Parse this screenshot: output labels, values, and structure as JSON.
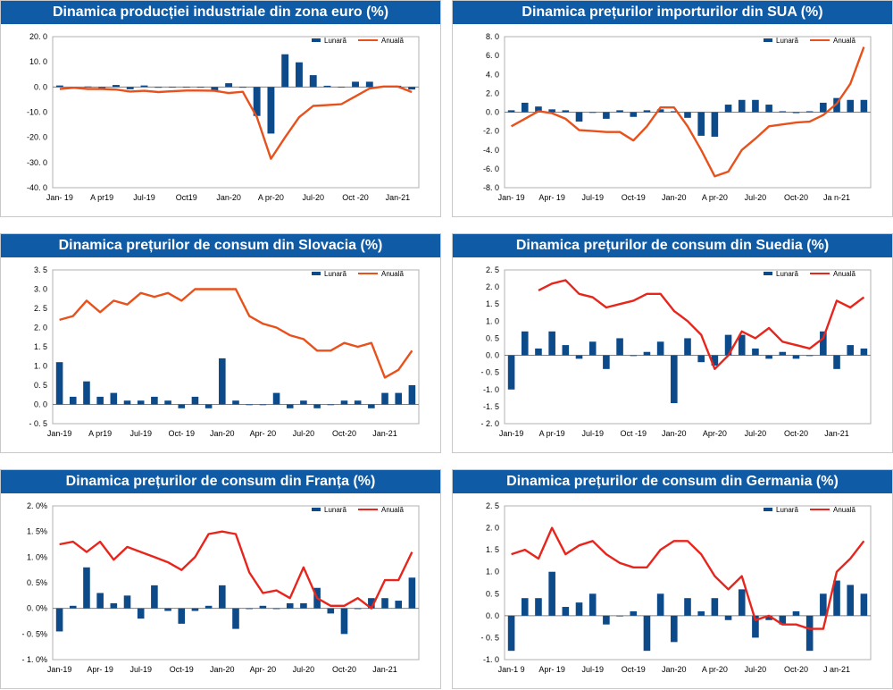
{
  "chart_data": [
    {
      "type": "bar",
      "title": "Dinamica producției industriale din zona euro (%)",
      "legend": [
        "Lunară",
        "Anuală"
      ],
      "x_tick_labels": [
        "Jan- 19",
        "A pr19",
        "Jul-19",
        "Oct19",
        "Jan-20",
        "A pr-20",
        "Jul-20",
        "Oct -20",
        "Jan-21"
      ],
      "y_tick_labels": [
        "20. 0",
        "10. 0",
        "0. 0",
        "-10. 0",
        "-20. 0",
        "-30. 0",
        "-40. 0"
      ],
      "ylim": [
        -40,
        20
      ],
      "yticks": [
        20,
        10,
        0,
        -10,
        -20,
        -30,
        -40
      ],
      "categories": [
        "Jan-19",
        "Feb-19",
        "Mar-19",
        "Apr-19",
        "May-19",
        "Jun-19",
        "Jul-19",
        "Aug-19",
        "Sep-19",
        "Oct-19",
        "Nov-19",
        "Dec-19",
        "Jan-20",
        "Feb-20",
        "Mar-20",
        "Apr-20",
        "May-20",
        "Jun-20",
        "Jul-20",
        "Aug-20",
        "Sep-20",
        "Oct-20",
        "Nov-20",
        "Dec-20",
        "Jan-21",
        "Feb-21"
      ],
      "series": [
        {
          "name": "Lunară",
          "kind": "bar",
          "color": "#0d4a8a",
          "values": [
            0.6,
            -0.3,
            0.2,
            -0.4,
            0.8,
            -0.9,
            0.6,
            -0.3,
            0.1,
            0.1,
            -0.1,
            -1.6,
            1.5,
            -0.2,
            -11.5,
            -18.5,
            13.0,
            9.8,
            4.7,
            0.5,
            0.1,
            2.1,
            2.1,
            0.1,
            0.5,
            -1.0
          ]
        },
        {
          "name": "Anuală",
          "kind": "line",
          "color": "#e8511c",
          "values": [
            -0.8,
            -0.3,
            -0.8,
            -0.8,
            -1.0,
            -1.8,
            -1.5,
            -2.0,
            -1.7,
            -1.4,
            -1.4,
            -1.5,
            -2.4,
            -1.9,
            -12.0,
            -28.5,
            -20.0,
            -12.0,
            -7.5,
            -7.2,
            -6.8,
            -3.7,
            -0.6,
            0.2,
            0.2,
            -2.0
          ]
        }
      ]
    },
    {
      "type": "bar",
      "title": "Dinamica prețurilor importurilor din SUA (%)",
      "legend": [
        "Lunară",
        "Anuală"
      ],
      "x_tick_labels": [
        "Jan- 19",
        "Apr- 19",
        "Jul-19",
        "Oct-19",
        "Jan-20",
        "A pr-20",
        "Jul-20",
        "Oct-20",
        "Ja n-21"
      ],
      "y_tick_labels": [
        "8. 0",
        "6. 0",
        "4. 0",
        "2. 0",
        "0. 0",
        "-2. 0",
        "-4. 0",
        "-6. 0",
        "-8. 0"
      ],
      "ylim": [
        -8,
        8
      ],
      "yticks": [
        8,
        6,
        4,
        2,
        0,
        -2,
        -4,
        -6,
        -8
      ],
      "categories": [
        "Jan-19",
        "Feb-19",
        "Mar-19",
        "Apr-19",
        "May-19",
        "Jun-19",
        "Jul-19",
        "Aug-19",
        "Sep-19",
        "Oct-19",
        "Nov-19",
        "Dec-19",
        "Jan-20",
        "Feb-20",
        "Mar-20",
        "Apr-20",
        "May-20",
        "Jun-20",
        "Jul-20",
        "Aug-20",
        "Sep-20",
        "Oct-20",
        "Nov-20",
        "Dec-20",
        "Jan-21",
        "Feb-21",
        "Mar-21"
      ],
      "series": [
        {
          "name": "Lunară",
          "kind": "bar",
          "color": "#0d4a8a",
          "values": [
            0.2,
            1.0,
            0.6,
            0.3,
            0.2,
            -1.0,
            0.0,
            -0.7,
            0.2,
            -0.5,
            0.2,
            0.3,
            0.1,
            -0.6,
            -2.5,
            -2.6,
            0.8,
            1.3,
            1.3,
            0.8,
            0.1,
            -0.1,
            0.1,
            1.0,
            1.5,
            1.3,
            1.3
          ]
        },
        {
          "name": "Anuală",
          "kind": "line",
          "color": "#e8511c",
          "values": [
            -1.5,
            -0.7,
            0.1,
            -0.1,
            -0.7,
            -1.9,
            -2.0,
            -2.1,
            -2.1,
            -3.0,
            -1.5,
            0.5,
            0.5,
            -1.5,
            -4.0,
            -6.8,
            -6.3,
            -4.0,
            -2.8,
            -1.5,
            -1.3,
            -1.1,
            -1.0,
            -0.3,
            0.9,
            3.0,
            6.9
          ]
        }
      ]
    },
    {
      "type": "bar",
      "title": "Dinamica prețurilor de consum din Slovacia (%)",
      "legend": [
        "Lunară",
        "Anuală"
      ],
      "x_tick_labels": [
        "Jan-19",
        "A pr19",
        "Jul-19",
        "Oct- 19",
        "Jan-20",
        "Apr- 20",
        "Jul-20",
        "Oct-20",
        "Jan-21"
      ],
      "y_tick_labels": [
        "3. 5",
        "3. 0",
        "2. 5",
        "2. 0",
        "1. 5",
        "1. 0",
        "0. 5",
        "0. 0",
        "- 0. 5"
      ],
      "ylim": [
        -0.5,
        3.5
      ],
      "yticks": [
        3.5,
        3.0,
        2.5,
        2.0,
        1.5,
        1.0,
        0.5,
        0.0,
        -0.5
      ],
      "categories": [
        "Jan-19",
        "Feb-19",
        "Mar-19",
        "Apr-19",
        "May-19",
        "Jun-19",
        "Jul-19",
        "Aug-19",
        "Sep-19",
        "Oct-19",
        "Nov-19",
        "Dec-19",
        "Jan-20",
        "Feb-20",
        "Mar-20",
        "Apr-20",
        "May-20",
        "Jun-20",
        "Jul-20",
        "Aug-20",
        "Sep-20",
        "Oct-20",
        "Nov-20",
        "Dec-20",
        "Jan-21",
        "Feb-21",
        "Mar-21"
      ],
      "series": [
        {
          "name": "Lunară",
          "kind": "bar",
          "color": "#0d4a8a",
          "values": [
            1.1,
            0.2,
            0.6,
            0.2,
            0.3,
            0.1,
            0.1,
            0.2,
            0.1,
            -0.1,
            0.2,
            -0.1,
            1.2,
            0.1,
            0.0,
            0.0,
            0.3,
            -0.1,
            0.1,
            -0.1,
            0.0,
            0.1,
            0.1,
            -0.1,
            0.3,
            0.3,
            0.5
          ]
        },
        {
          "name": "Anuală",
          "kind": "line",
          "color": "#e8511c",
          "values": [
            2.2,
            2.3,
            2.7,
            2.4,
            2.7,
            2.6,
            2.9,
            2.8,
            2.9,
            2.7,
            3.0,
            3.0,
            3.0,
            3.0,
            2.3,
            2.1,
            2.0,
            1.8,
            1.7,
            1.4,
            1.4,
            1.6,
            1.5,
            1.6,
            0.7,
            0.9,
            1.4
          ]
        }
      ]
    },
    {
      "type": "bar",
      "title": "Dinamica prețurilor de consum din Suedia (%)",
      "legend": [
        "Lunară",
        "Anuală"
      ],
      "x_tick_labels": [
        "Jan-19",
        "A pr-19",
        "Jul-19",
        "Oct -19",
        "Jan-20",
        "Apr-20",
        "Jul-20",
        "Oct-20",
        "Jan-21"
      ],
      "y_tick_labels": [
        "2. 5",
        "2. 0",
        "1. 5",
        "1. 0",
        "0. 5",
        "0. 0",
        "- 0. 5",
        "-1. 0",
        "-1. 5",
        "- 2. 0"
      ],
      "ylim": [
        -2.0,
        2.5
      ],
      "yticks": [
        2.5,
        2.0,
        1.5,
        1.0,
        0.5,
        0.0,
        -0.5,
        -1.0,
        -1.5,
        -2.0
      ],
      "categories": [
        "Jan-19",
        "Feb-19",
        "Mar-19",
        "Apr-19",
        "May-19",
        "Jun-19",
        "Jul-19",
        "Aug-19",
        "Sep-19",
        "Oct-19",
        "Nov-19",
        "Dec-19",
        "Jan-20",
        "Feb-20",
        "Mar-20",
        "Apr-20",
        "May-20",
        "Jun-20",
        "Jul-20",
        "Aug-20",
        "Sep-20",
        "Oct-20",
        "Nov-20",
        "Dec-20",
        "Jan-21",
        "Feb-21",
        "Mar-21"
      ],
      "series": [
        {
          "name": "Lunară",
          "kind": "bar",
          "color": "#0d4a8a",
          "values": [
            -1.0,
            0.7,
            0.2,
            0.7,
            0.3,
            -0.1,
            0.4,
            -0.4,
            0.5,
            0.0,
            0.1,
            0.4,
            -1.4,
            0.5,
            -0.2,
            -0.3,
            0.6,
            0.6,
            0.2,
            -0.1,
            0.1,
            -0.1,
            0.0,
            0.7,
            -0.4,
            0.3,
            0.2
          ]
        },
        {
          "name": "Anuală",
          "kind": "line",
          "color": "#e8251c",
          "values": [
            null,
            null,
            1.9,
            2.1,
            2.2,
            1.8,
            1.7,
            1.4,
            1.5,
            1.6,
            1.8,
            1.8,
            1.3,
            1.0,
            0.6,
            -0.4,
            0.0,
            0.7,
            0.5,
            0.8,
            0.4,
            0.3,
            0.2,
            0.5,
            1.6,
            1.4,
            1.7
          ]
        }
      ]
    },
    {
      "type": "bar",
      "title": "Dinamica prețurilor de consum din Franța (%)",
      "legend": [
        "Lunară",
        "Anuală"
      ],
      "x_tick_labels": [
        "Jan-19",
        "Apr- 19",
        "Jul-19",
        "Oct-19",
        "Jan-20",
        "Apr- 20",
        "Jul-20",
        "Oct-20",
        "Jan-21"
      ],
      "y_tick_labels": [
        "2. 0%",
        "1. 5%",
        "1. 0%",
        "0. 5%",
        "0. 0%",
        "- 0. 5%",
        "- 1. 0%"
      ],
      "ylim": [
        -1.0,
        2.0
      ],
      "yticks": [
        2.0,
        1.5,
        1.0,
        0.5,
        0.0,
        -0.5,
        -1.0
      ],
      "categories": [
        "Jan-19",
        "Feb-19",
        "Mar-19",
        "Apr-19",
        "May-19",
        "Jun-19",
        "Jul-19",
        "Aug-19",
        "Sep-19",
        "Oct-19",
        "Nov-19",
        "Dec-19",
        "Jan-20",
        "Feb-20",
        "Mar-20",
        "Apr-20",
        "May-20",
        "Jun-20",
        "Jul-20",
        "Aug-20",
        "Sep-20",
        "Oct-20",
        "Nov-20",
        "Dec-20",
        "Jan-21",
        "Feb-21",
        "Mar-21"
      ],
      "series": [
        {
          "name": "Lunară",
          "kind": "bar",
          "color": "#0d4a8a",
          "values": [
            -0.45,
            0.05,
            0.8,
            0.3,
            0.1,
            0.25,
            -0.2,
            0.45,
            -0.05,
            -0.3,
            -0.05,
            0.05,
            0.45,
            -0.4,
            0.0,
            0.05,
            0.0,
            0.1,
            0.1,
            0.4,
            -0.1,
            -0.5,
            0.0,
            0.2,
            0.2,
            0.15,
            0.6
          ]
        },
        {
          "name": "Anuală",
          "kind": "line",
          "color": "#e8251c",
          "values": [
            1.25,
            1.3,
            1.1,
            1.3,
            0.95,
            1.2,
            1.1,
            1.0,
            0.9,
            0.75,
            1.0,
            1.45,
            1.5,
            1.45,
            0.7,
            0.3,
            0.35,
            0.2,
            0.8,
            0.2,
            0.05,
            0.05,
            0.2,
            0.0,
            0.55,
            0.55,
            1.1
          ]
        }
      ]
    },
    {
      "type": "bar",
      "title": "Dinamica prețurilor de consum din Germania (%)",
      "legend": [
        "Lunară",
        "Anuală"
      ],
      "x_tick_labels": [
        "Jan-1 9",
        "Apr- 19",
        "Jul-19",
        "Oct-19",
        "Jan-20",
        "A pr-20",
        "Jul-20",
        "Oct-20",
        "J an-21"
      ],
      "y_tick_labels": [
        "2. 5",
        "2. 0",
        "1. 5",
        "1. 0",
        "0. 5",
        "0. 0",
        "- 0. 5",
        "-1. 0"
      ],
      "ylim": [
        -1.0,
        2.5
      ],
      "yticks": [
        2.5,
        2.0,
        1.5,
        1.0,
        0.5,
        0.0,
        -0.5,
        -1.0
      ],
      "categories": [
        "Jan-19",
        "Feb-19",
        "Mar-19",
        "Apr-19",
        "May-19",
        "Jun-19",
        "Jul-19",
        "Aug-19",
        "Sep-19",
        "Oct-19",
        "Nov-19",
        "Dec-19",
        "Jan-20",
        "Feb-20",
        "Mar-20",
        "Apr-20",
        "May-20",
        "Jun-20",
        "Jul-20",
        "Aug-20",
        "Sep-20",
        "Oct-20",
        "Nov-20",
        "Dec-20",
        "Jan-21",
        "Feb-21",
        "Mar-21"
      ],
      "series": [
        {
          "name": "Lunară",
          "kind": "bar",
          "color": "#0d4a8a",
          "values": [
            -0.8,
            0.4,
            0.4,
            1.0,
            0.2,
            0.3,
            0.5,
            -0.2,
            0.0,
            0.1,
            -0.8,
            0.5,
            -0.6,
            0.4,
            0.1,
            0.4,
            -0.1,
            0.6,
            -0.5,
            -0.1,
            -0.2,
            0.1,
            -0.8,
            0.5,
            0.8,
            0.7,
            0.5
          ]
        },
        {
          "name": "Anuală",
          "kind": "line",
          "color": "#e8251c",
          "values": [
            1.4,
            1.5,
            1.3,
            2.0,
            1.4,
            1.6,
            1.7,
            1.4,
            1.2,
            1.1,
            1.1,
            1.5,
            1.7,
            1.7,
            1.4,
            0.9,
            0.6,
            0.9,
            -0.1,
            0.0,
            -0.2,
            -0.2,
            -0.3,
            -0.3,
            1.0,
            1.3,
            1.7
          ]
        }
      ]
    }
  ]
}
